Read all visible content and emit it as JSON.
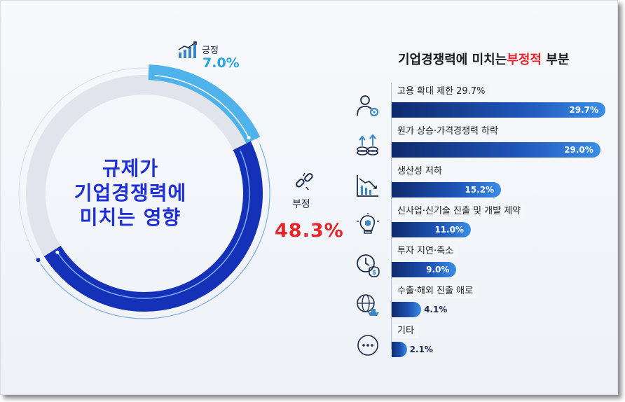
{
  "chart_data": [
    {
      "type": "pie",
      "title": "규제가 기업경쟁력에 미치는 영향",
      "title_lines": [
        "규제가",
        "기업경쟁력에",
        "미치는 영향"
      ],
      "slices": [
        {
          "name": "긍정",
          "value": 7.0,
          "label": "7.0%",
          "color": "#4fb2ea"
        },
        {
          "name": "부정",
          "value": 48.3,
          "label": "48.3%",
          "color": "#1531b8"
        }
      ],
      "remainder_color": "#e1e5eb"
    },
    {
      "type": "bar",
      "orientation": "horizontal",
      "title_parts": [
        "기업경쟁력에 미치는",
        "부정적",
        "부분"
      ],
      "categories": [
        "고용 확대 제한 29.7%",
        "원가 상승·가격경쟁력 하락",
        "생산성 저하",
        "신사업·신기술 진출 및 개발 제약",
        "투자 지연·축소",
        "수출·해외 진출 애로",
        "기타"
      ],
      "values": [
        29.7,
        29.0,
        15.2,
        11.0,
        9.0,
        4.1,
        2.1
      ],
      "value_labels": [
        "29.7%",
        "29.0%",
        "15.2%",
        "11.0%",
        "9.0%",
        "4.1%",
        "2.1%"
      ],
      "icons": [
        "worker-gear-icon",
        "money-growth-icon",
        "decline-chart-icon",
        "lightbulb-cube-icon",
        "clock-money-icon",
        "globe-ship-icon",
        "more-dots-icon"
      ],
      "xlim": [
        0,
        29.7
      ]
    }
  ]
}
